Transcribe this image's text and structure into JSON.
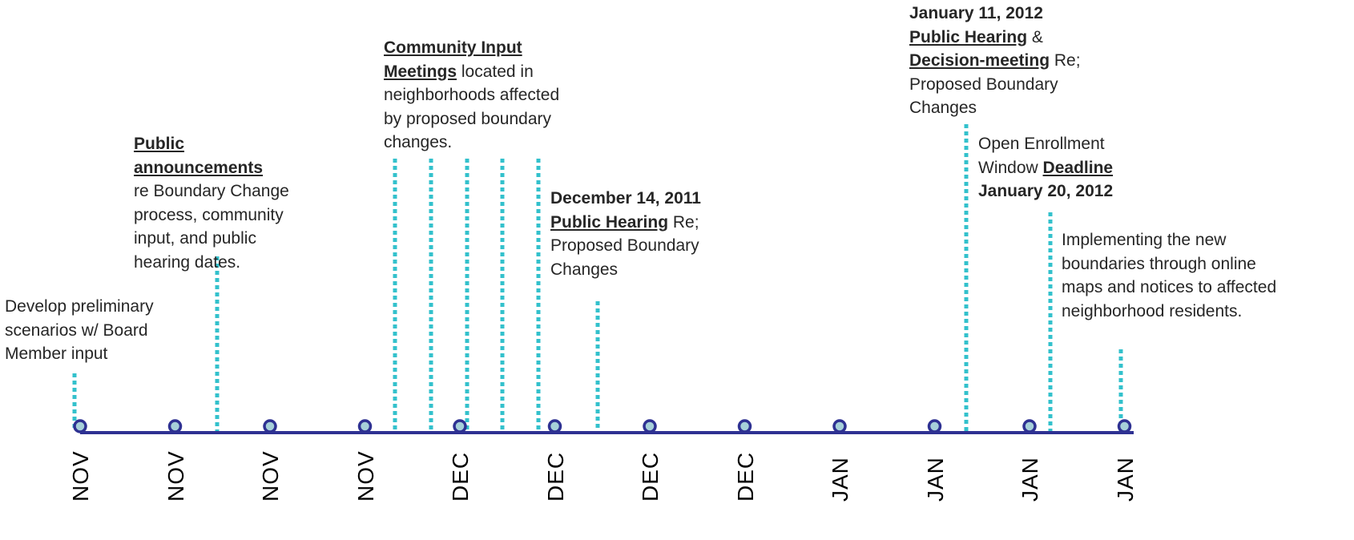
{
  "timeline": {
    "months": [
      "NOV",
      "NOV",
      "NOV",
      "NOV",
      "DEC",
      "DEC",
      "DEC",
      "DEC",
      "JAN",
      "JAN",
      "JAN",
      "JAN"
    ],
    "colors": {
      "axis": "#2e3192",
      "marker_fill": "#a6d0d9",
      "marker_stroke": "#2e3192",
      "connector": "#33c1cc",
      "text": "#262626"
    }
  },
  "annotations": {
    "develop": {
      "text": "Develop preliminary scenarios w/ Board Member input"
    },
    "announce": {
      "title": "Public announcements",
      "text": "re Boundary Change process, community input, and public hearing dates."
    },
    "community": {
      "title": "Community Input Meetings",
      "text": "located in neighborhoods affected by proposed boundary changes."
    },
    "hearing_dec": {
      "date": "December 14, 2011",
      "title": "Public Hearing",
      "text": "Re; Proposed Boundary Changes"
    },
    "hearing_jan": {
      "date": "January 11, 2012",
      "title": "Public Hearing",
      "amp": "&",
      "title2": "Decision-meeting",
      "text": "Re; Proposed Boundary Changes"
    },
    "enrollment": {
      "text": "Open Enrollment Window",
      "title": "Deadline",
      "date": "January 20, 2012"
    },
    "implement": {
      "text": "Implementing the new boundaries through online maps and notices to affected neighborhood residents."
    }
  }
}
